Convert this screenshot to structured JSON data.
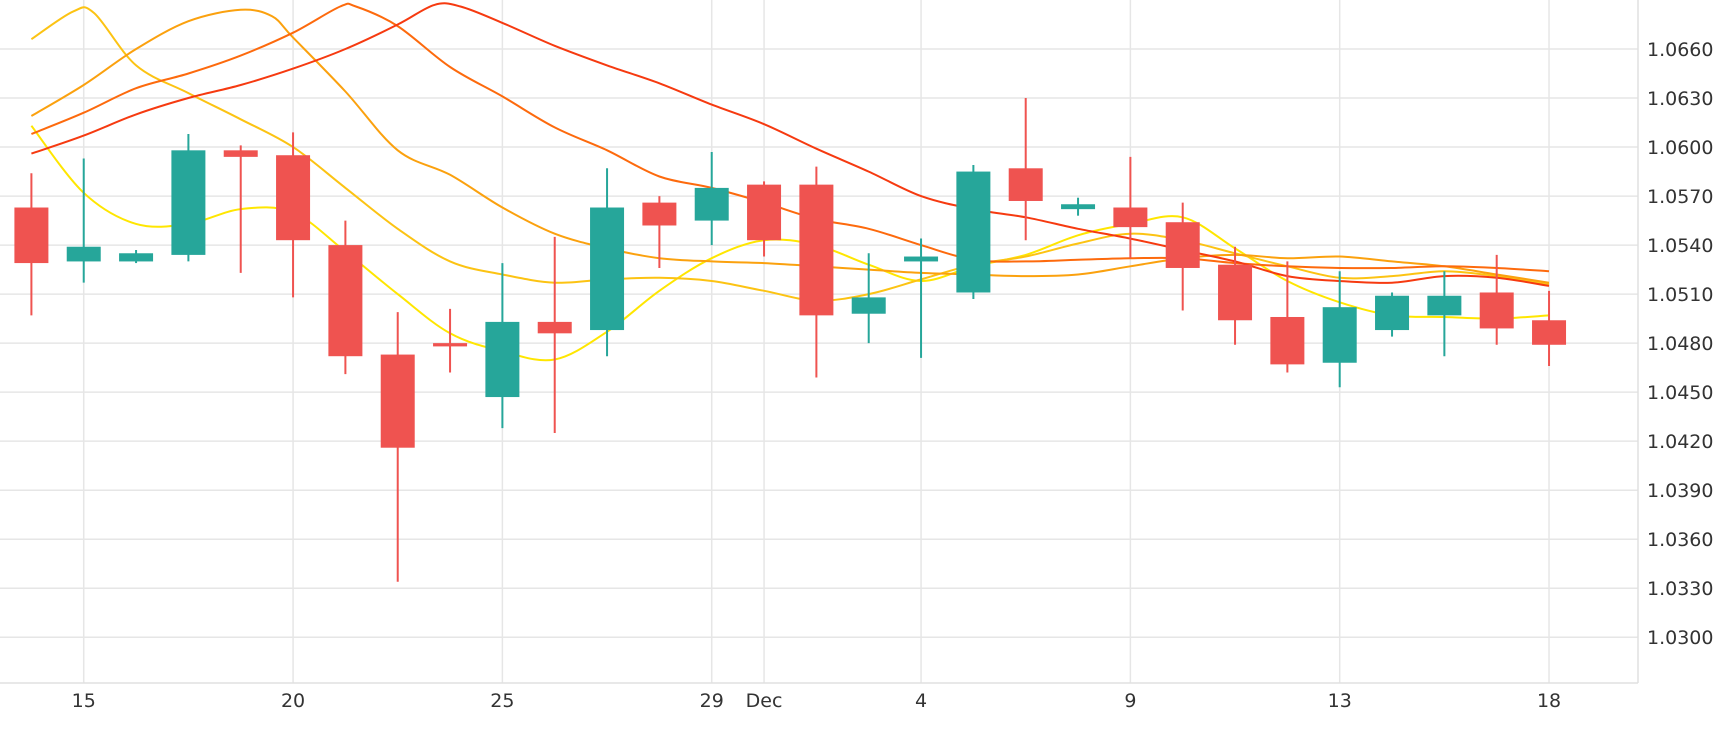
{
  "chart_data": {
    "type": "candlestick",
    "x_tick_labels": [
      {
        "label": "15",
        "day": 1
      },
      {
        "label": "20",
        "day": 5
      },
      {
        "label": "25",
        "day": 9
      },
      {
        "label": "29",
        "day": 13
      },
      {
        "label": "Dec",
        "day": 14
      },
      {
        "label": "4",
        "day": 17
      },
      {
        "label": "9",
        "day": 21
      },
      {
        "label": "13",
        "day": 25
      },
      {
        "label": "18",
        "day": 29
      }
    ],
    "y_ticks": [
      1.03,
      1.033,
      1.036,
      1.039,
      1.042,
      1.045,
      1.048,
      1.051,
      1.054,
      1.057,
      1.06,
      1.063,
      1.066
    ],
    "y_tick_labels": [
      "1.0300",
      "1.0330",
      "1.0360",
      "1.0390",
      "1.0420",
      "1.0450",
      "1.0480",
      "1.0510",
      "1.0540",
      "1.0570",
      "1.0600",
      "1.0630",
      "1.0660"
    ],
    "ylim": [
      1.0272,
      1.069
    ],
    "xlim": [
      -0.6,
      30.7
    ],
    "grid": true,
    "colors": {
      "up": "#26a69a",
      "down": "#ef5350"
    },
    "candles": [
      {
        "d": 0,
        "o": 1.0563,
        "h": 1.0584,
        "l": 1.0497,
        "c": 1.0529
      },
      {
        "d": 1,
        "o": 1.053,
        "h": 1.0593,
        "l": 1.0517,
        "c": 1.0539
      },
      {
        "d": 2,
        "o": 1.053,
        "h": 1.0537,
        "l": 1.0529,
        "c": 1.0535
      },
      {
        "d": 3,
        "o": 1.0534,
        "h": 1.0608,
        "l": 1.053,
        "c": 1.0598
      },
      {
        "d": 4,
        "o": 1.0598,
        "h": 1.0601,
        "l": 1.0523,
        "c": 1.0594
      },
      {
        "d": 5,
        "o": 1.0595,
        "h": 1.0609,
        "l": 1.0508,
        "c": 1.0543
      },
      {
        "d": 6,
        "o": 1.054,
        "h": 1.0555,
        "l": 1.0461,
        "c": 1.0472
      },
      {
        "d": 7,
        "o": 1.0473,
        "h": 1.0499,
        "l": 1.0334,
        "c": 1.0416
      },
      {
        "d": 8,
        "o": 1.048,
        "h": 1.0501,
        "l": 1.0462,
        "c": 1.0478
      },
      {
        "d": 9,
        "o": 1.0447,
        "h": 1.0529,
        "l": 1.0428,
        "c": 1.0493
      },
      {
        "d": 10,
        "o": 1.0493,
        "h": 1.0545,
        "l": 1.0425,
        "c": 1.0486
      },
      {
        "d": 11,
        "o": 1.0488,
        "h": 1.0587,
        "l": 1.0472,
        "c": 1.0563
      },
      {
        "d": 12,
        "o": 1.0566,
        "h": 1.057,
        "l": 1.0526,
        "c": 1.0552
      },
      {
        "d": 13,
        "o": 1.0555,
        "h": 1.0597,
        "l": 1.054,
        "c": 1.0575
      },
      {
        "d": 14,
        "o": 1.0577,
        "h": 1.0579,
        "l": 1.0533,
        "c": 1.0543
      },
      {
        "d": 15,
        "o": 1.0577,
        "h": 1.0588,
        "l": 1.0459,
        "c": 1.0497
      },
      {
        "d": 16,
        "o": 1.0498,
        "h": 1.0535,
        "l": 1.048,
        "c": 1.0508
      },
      {
        "d": 17,
        "o": 1.053,
        "h": 1.0544,
        "l": 1.0471,
        "c": 1.0533
      },
      {
        "d": 18,
        "o": 1.0511,
        "h": 1.0589,
        "l": 1.0507,
        "c": 1.0585
      },
      {
        "d": 19,
        "o": 1.0587,
        "h": 1.063,
        "l": 1.0543,
        "c": 1.0567
      },
      {
        "d": 20,
        "o": 1.0562,
        "h": 1.0569,
        "l": 1.0558,
        "c": 1.0565
      },
      {
        "d": 21,
        "o": 1.0563,
        "h": 1.0594,
        "l": 1.0532,
        "c": 1.0551
      },
      {
        "d": 22,
        "o": 1.0554,
        "h": 1.0566,
        "l": 1.05,
        "c": 1.0526
      },
      {
        "d": 23,
        "o": 1.0528,
        "h": 1.0539,
        "l": 1.0479,
        "c": 1.0494
      },
      {
        "d": 24,
        "o": 1.0496,
        "h": 1.053,
        "l": 1.0462,
        "c": 1.0467
      },
      {
        "d": 25,
        "o": 1.0468,
        "h": 1.0524,
        "l": 1.0453,
        "c": 1.0502
      },
      {
        "d": 26,
        "o": 1.0488,
        "h": 1.0511,
        "l": 1.0484,
        "c": 1.0509
      },
      {
        "d": 27,
        "o": 1.0497,
        "h": 1.0524,
        "l": 1.0472,
        "c": 1.0509
      },
      {
        "d": 28,
        "o": 1.0511,
        "h": 1.0534,
        "l": 1.0479,
        "c": 1.0489
      },
      {
        "d": 29,
        "o": 1.0494,
        "h": 1.0512,
        "l": 1.0466,
        "c": 1.0479
      }
    ],
    "series": [
      {
        "color": "#ffe600",
        "values": [
          {
            "d": 0,
            "v": 1.0613
          },
          {
            "d": 1,
            "v": 1.0572
          },
          {
            "d": 2,
            "v": 1.0553
          },
          {
            "d": 3,
            "v": 1.0553
          },
          {
            "d": 4,
            "v": 1.0562
          },
          {
            "d": 5,
            "v": 1.056
          },
          {
            "d": 6,
            "v": 1.0536
          },
          {
            "d": 7,
            "v": 1.051
          },
          {
            "d": 8,
            "v": 1.0486
          },
          {
            "d": 9,
            "v": 1.0475
          },
          {
            "d": 10,
            "v": 1.047
          },
          {
            "d": 11,
            "v": 1.0487
          },
          {
            "d": 12,
            "v": 1.0512
          },
          {
            "d": 13,
            "v": 1.0532
          },
          {
            "d": 14,
            "v": 1.0543
          },
          {
            "d": 15,
            "v": 1.054
          },
          {
            "d": 16,
            "v": 1.0528
          },
          {
            "d": 17,
            "v": 1.0518
          },
          {
            "d": 18,
            "v": 1.0527
          },
          {
            "d": 19,
            "v": 1.0534
          },
          {
            "d": 20,
            "v": 1.0546
          },
          {
            "d": 21,
            "v": 1.0553
          },
          {
            "d": 22,
            "v": 1.0557
          },
          {
            "d": 23,
            "v": 1.0538
          },
          {
            "d": 24,
            "v": 1.0518
          },
          {
            "d": 25,
            "v": 1.0505
          },
          {
            "d": 26,
            "v": 1.0497
          },
          {
            "d": 27,
            "v": 1.0496
          },
          {
            "d": 28,
            "v": 1.0495
          },
          {
            "d": 29,
            "v": 1.0497
          }
        ]
      },
      {
        "color": "#fcc313",
        "values": [
          {
            "d": 0,
            "v": 1.0666
          },
          {
            "d": 0.8,
            "v": 1.0683
          },
          {
            "d": 1.2,
            "v": 1.0682
          },
          {
            "d": 2,
            "v": 1.065
          },
          {
            "d": 3,
            "v": 1.0633
          },
          {
            "d": 4,
            "v": 1.0617
          },
          {
            "d": 5,
            "v": 1.06
          },
          {
            "d": 6,
            "v": 1.0575
          },
          {
            "d": 7,
            "v": 1.055
          },
          {
            "d": 8,
            "v": 1.053
          },
          {
            "d": 9,
            "v": 1.0522
          },
          {
            "d": 10,
            "v": 1.0517
          },
          {
            "d": 11,
            "v": 1.0519
          },
          {
            "d": 12,
            "v": 1.052
          },
          {
            "d": 13,
            "v": 1.0518
          },
          {
            "d": 14,
            "v": 1.0512
          },
          {
            "d": 15,
            "v": 1.0506
          },
          {
            "d": 16,
            "v": 1.051
          },
          {
            "d": 17,
            "v": 1.0519
          },
          {
            "d": 18,
            "v": 1.0528
          },
          {
            "d": 19,
            "v": 1.0533
          },
          {
            "d": 20,
            "v": 1.0541
          },
          {
            "d": 21,
            "v": 1.0547
          },
          {
            "d": 22,
            "v": 1.0543
          },
          {
            "d": 23,
            "v": 1.0535
          },
          {
            "d": 24,
            "v": 1.0527
          },
          {
            "d": 25,
            "v": 1.052
          },
          {
            "d": 26,
            "v": 1.0521
          },
          {
            "d": 27,
            "v": 1.0524
          },
          {
            "d": 28,
            "v": 1.0521
          },
          {
            "d": 29,
            "v": 1.0516
          }
        ]
      },
      {
        "color": "#fba10e",
        "values": [
          {
            "d": 0,
            "v": 1.0619
          },
          {
            "d": 1,
            "v": 1.0638
          },
          {
            "d": 2,
            "v": 1.066
          },
          {
            "d": 3,
            "v": 1.0677
          },
          {
            "d": 4,
            "v": 1.0684
          },
          {
            "d": 4.6,
            "v": 1.068
          },
          {
            "d": 5,
            "v": 1.0667
          },
          {
            "d": 6,
            "v": 1.0634
          },
          {
            "d": 7,
            "v": 1.0598
          },
          {
            "d": 8,
            "v": 1.0583
          },
          {
            "d": 9,
            "v": 1.0563
          },
          {
            "d": 10,
            "v": 1.0547
          },
          {
            "d": 11,
            "v": 1.0538
          },
          {
            "d": 12,
            "v": 1.0532
          },
          {
            "d": 13,
            "v": 1.053
          },
          {
            "d": 14,
            "v": 1.0529
          },
          {
            "d": 15,
            "v": 1.0527
          },
          {
            "d": 16,
            "v": 1.0525
          },
          {
            "d": 17,
            "v": 1.0523
          },
          {
            "d": 18,
            "v": 1.0522
          },
          {
            "d": 19,
            "v": 1.0521
          },
          {
            "d": 20,
            "v": 1.0522
          },
          {
            "d": 21,
            "v": 1.0527
          },
          {
            "d": 22,
            "v": 1.0532
          },
          {
            "d": 23,
            "v": 1.0534
          },
          {
            "d": 24,
            "v": 1.0532
          },
          {
            "d": 25,
            "v": 1.0533
          },
          {
            "d": 26,
            "v": 1.053
          },
          {
            "d": 27,
            "v": 1.0527
          },
          {
            "d": 28,
            "v": 1.0522
          },
          {
            "d": 29,
            "v": 1.0517
          }
        ]
      },
      {
        "color": "#fd6a0d",
        "values": [
          {
            "d": 0,
            "v": 1.0608
          },
          {
            "d": 1,
            "v": 1.0621
          },
          {
            "d": 2,
            "v": 1.0636
          },
          {
            "d": 3,
            "v": 1.0645
          },
          {
            "d": 4,
            "v": 1.0656
          },
          {
            "d": 5,
            "v": 1.067
          },
          {
            "d": 5.9,
            "v": 1.0686
          },
          {
            "d": 6.2,
            "v": 1.0686
          },
          {
            "d": 7,
            "v": 1.0674
          },
          {
            "d": 8,
            "v": 1.0649
          },
          {
            "d": 9,
            "v": 1.0631
          },
          {
            "d": 10,
            "v": 1.0612
          },
          {
            "d": 11,
            "v": 1.0598
          },
          {
            "d": 12,
            "v": 1.0582
          },
          {
            "d": 13,
            "v": 1.0575
          },
          {
            "d": 14,
            "v": 1.0566
          },
          {
            "d": 15,
            "v": 1.0556
          },
          {
            "d": 16,
            "v": 1.055
          },
          {
            "d": 17,
            "v": 1.054
          },
          {
            "d": 18,
            "v": 1.0531
          },
          {
            "d": 19,
            "v": 1.053
          },
          {
            "d": 20,
            "v": 1.0531
          },
          {
            "d": 21,
            "v": 1.0532
          },
          {
            "d": 22,
            "v": 1.0532
          },
          {
            "d": 23,
            "v": 1.0529
          },
          {
            "d": 24,
            "v": 1.0527
          },
          {
            "d": 25,
            "v": 1.0526
          },
          {
            "d": 26,
            "v": 1.0526
          },
          {
            "d": 27,
            "v": 1.0527
          },
          {
            "d": 28,
            "v": 1.0526
          },
          {
            "d": 29,
            "v": 1.0524
          }
        ]
      },
      {
        "color": "#f63a10",
        "values": [
          {
            "d": 0,
            "v": 1.0596
          },
          {
            "d": 1,
            "v": 1.0607
          },
          {
            "d": 2,
            "v": 1.062
          },
          {
            "d": 3,
            "v": 1.063
          },
          {
            "d": 4,
            "v": 1.0638
          },
          {
            "d": 5,
            "v": 1.0648
          },
          {
            "d": 6,
            "v": 1.066
          },
          {
            "d": 7,
            "v": 1.0675
          },
          {
            "d": 7.7,
            "v": 1.0687
          },
          {
            "d": 8.2,
            "v": 1.0686
          },
          {
            "d": 9,
            "v": 1.0676
          },
          {
            "d": 10,
            "v": 1.0662
          },
          {
            "d": 11,
            "v": 1.065
          },
          {
            "d": 12,
            "v": 1.0639
          },
          {
            "d": 13,
            "v": 1.0626
          },
          {
            "d": 14,
            "v": 1.0614
          },
          {
            "d": 15,
            "v": 1.0599
          },
          {
            "d": 16,
            "v": 1.0585
          },
          {
            "d": 17,
            "v": 1.057
          },
          {
            "d": 18,
            "v": 1.0562
          },
          {
            "d": 19,
            "v": 1.0557
          },
          {
            "d": 20,
            "v": 1.055
          },
          {
            "d": 21,
            "v": 1.0544
          },
          {
            "d": 22,
            "v": 1.0537
          },
          {
            "d": 23,
            "v": 1.053
          },
          {
            "d": 24,
            "v": 1.0521
          },
          {
            "d": 25,
            "v": 1.0518
          },
          {
            "d": 26,
            "v": 1.0517
          },
          {
            "d": 27,
            "v": 1.0521
          },
          {
            "d": 28,
            "v": 1.052
          },
          {
            "d": 29,
            "v": 1.0515
          }
        ]
      }
    ]
  }
}
